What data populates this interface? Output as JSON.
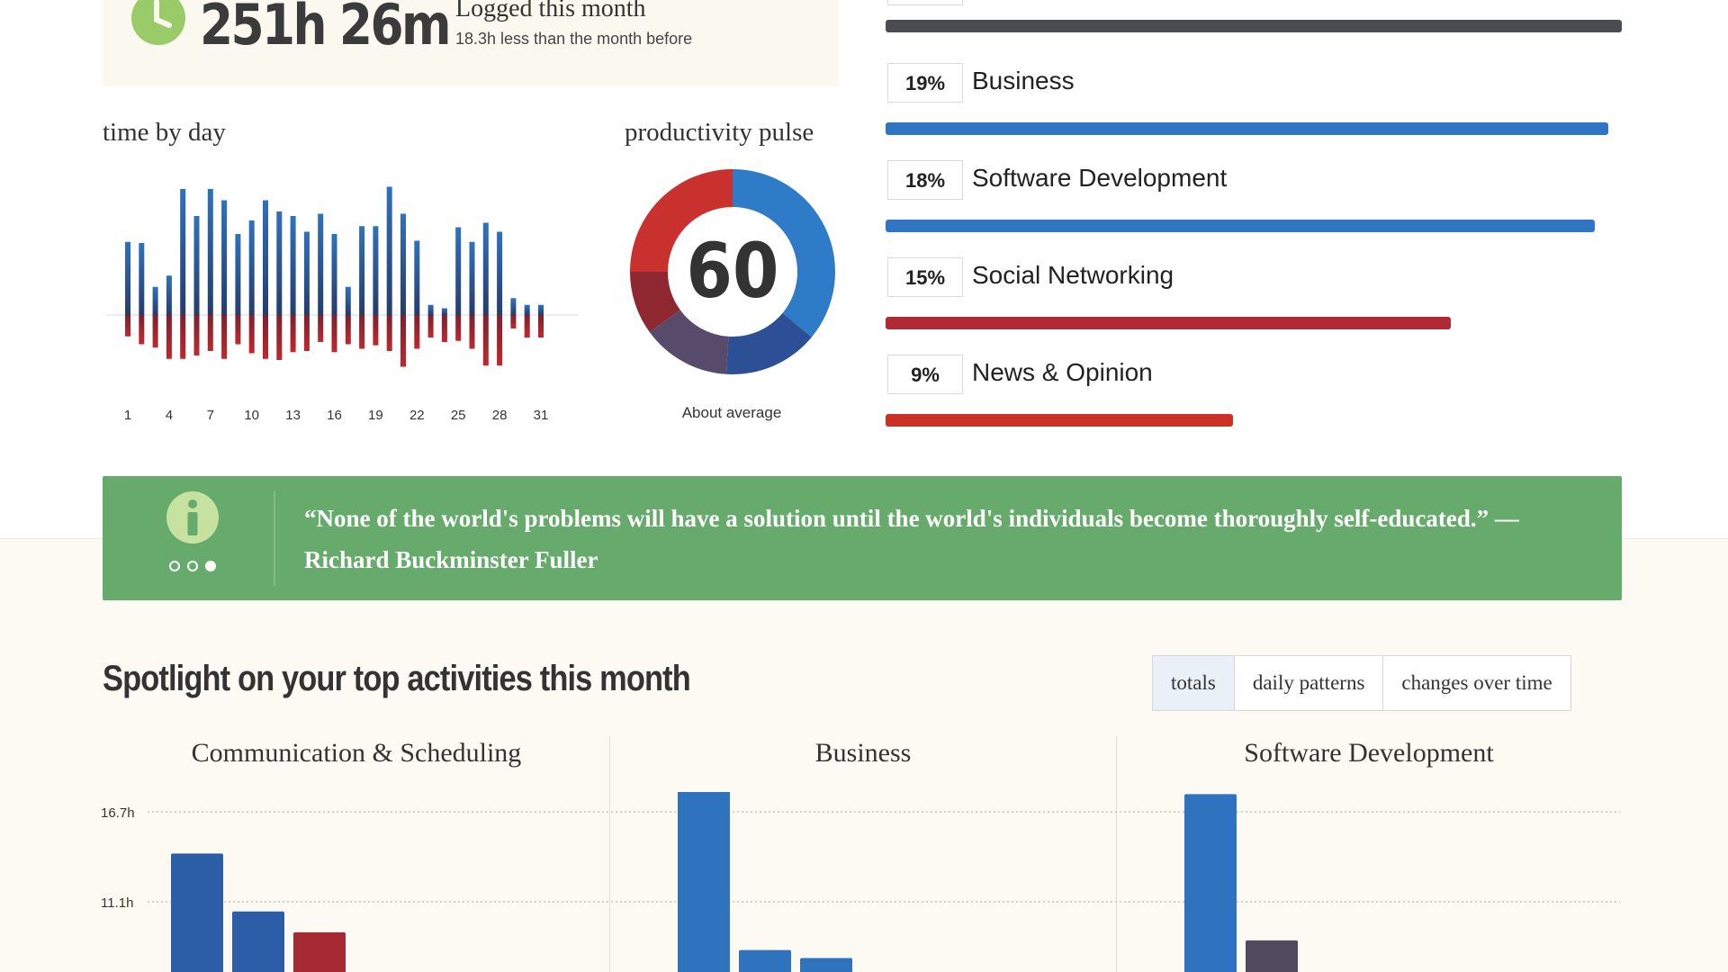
{
  "summary": {
    "total_time": "251h 26m",
    "logged_label": "Logged this month",
    "diff_text": "18.3h less than the month before",
    "icon": "clock-icon"
  },
  "time_by_day": {
    "title": "time by day",
    "chart_data": {
      "type": "bar",
      "x_tick_labels": [
        "1",
        "4",
        "7",
        "10",
        "13",
        "16",
        "19",
        "22",
        "25",
        "28",
        "31"
      ],
      "series": [
        {
          "color": "#2f72be",
          "values": [
            6.5,
            6.4,
            2.5,
            3.5,
            11.2,
            8.8,
            11.2,
            10.2,
            7.2,
            8.4,
            10.2,
            9.2,
            8.8,
            7.4,
            9.0,
            7.2,
            2.5,
            7.9,
            7.9,
            11.4,
            9.0,
            6.6,
            0.9,
            0.6,
            7.8,
            6.5,
            8.2,
            7.4,
            1.5,
            0.9,
            0.9
          ],
          "lower_color": "#253c6b"
        },
        {
          "color": "#c2272d",
          "values": [
            1.9,
            2.6,
            2.9,
            3.9,
            3.9,
            3.6,
            3.2,
            3.9,
            2.6,
            3.4,
            3.9,
            4.0,
            3.3,
            3.2,
            2.4,
            3.3,
            2.6,
            3.0,
            2.7,
            3.2,
            4.6,
            3.0,
            2.0,
            2.4,
            2.3,
            3.0,
            4.5,
            4.5,
            1.2,
            2.0,
            2.0
          ],
          "lower_color": "#7a2230"
        }
      ]
    }
  },
  "productivity_pulse": {
    "title": "productivity pulse",
    "score": "60",
    "caption": "About average",
    "chart_data": {
      "type": "pie",
      "slices": [
        {
          "value": 36,
          "color": "#2e7bc7"
        },
        {
          "value": 15,
          "color": "#2d4f95"
        },
        {
          "value": 14,
          "color": "#574a6a"
        },
        {
          "value": 10,
          "color": "#8f2730"
        },
        {
          "value": 25,
          "color": "#c9312f"
        }
      ]
    }
  },
  "categories": [
    {
      "pct": "19%",
      "name": "Business",
      "fraction": 0.982,
      "color": "#2f75c4"
    },
    {
      "pct": "18%",
      "name": "Software Development",
      "fraction": 0.963,
      "color": "#2f75c4"
    },
    {
      "pct": "15%",
      "name": "Social Networking",
      "fraction": 0.768,
      "color": "#b02a36"
    },
    {
      "pct": "9%",
      "name": "News & Opinion",
      "fraction": 0.472,
      "color": "#cc3128"
    }
  ],
  "top_category_bar": {
    "fraction": 1.0,
    "color": "#4b4b52"
  },
  "quote": {
    "text": "“None of the world's problems will have a solution until the world's individuals become thoroughly self-educated.” — Richard Buckminster Fuller",
    "icon": "info-icon",
    "pager": [
      "dot-empty",
      "dot-empty",
      "dot-filled"
    ]
  },
  "spotlight": {
    "title": "Spotlight on your top activities this month",
    "tabs": [
      {
        "label": "totals",
        "active": true
      },
      {
        "label": "daily patterns",
        "active": false
      },
      {
        "label": "changes over time",
        "active": false
      }
    ],
    "panels": [
      {
        "title": "Communication & Scheduling"
      },
      {
        "title": "Business"
      },
      {
        "title": "Software Development"
      }
    ],
    "chart_data": {
      "type": "bar",
      "y_tick_labels": [
        "16.7h",
        "11.1h"
      ],
      "y_ticks": [
        16.7,
        11.1
      ],
      "panels": [
        {
          "values": [
            14.1,
            10.5,
            9.2
          ],
          "colors": [
            "#2c5ea8",
            "#2c5ea8",
            "#a62a33"
          ]
        },
        {
          "values": [
            18.0,
            8.1,
            7.6
          ],
          "colors": [
            "#2f72be",
            "#2f72be",
            "#2f72be"
          ]
        },
        {
          "values": [
            17.8,
            8.7
          ],
          "colors": [
            "#2f72be",
            "#51495e"
          ]
        }
      ]
    }
  }
}
